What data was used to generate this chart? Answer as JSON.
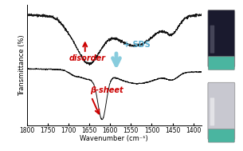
{
  "xlim": [
    1800,
    1380
  ],
  "xlabel": "Wavenumber (cm⁻¹)",
  "ylabel": "Transmittance (%)",
  "xticks": [
    1800,
    1750,
    1700,
    1650,
    1600,
    1550,
    1500,
    1450,
    1400
  ],
  "background_color": "#ffffff",
  "line_color": "#111111",
  "disorder_label": "disorder",
  "disorder_color": "#cc0000",
  "beta_label": "β-sheet",
  "beta_color": "#cc0000",
  "sds_label": "+ SDS",
  "sds_color": "#55aacc",
  "arrow_down_color": "#88ccdd",
  "axis_fontsize": 6,
  "tick_fontsize": 5.5,
  "annot_fontsize": 7
}
